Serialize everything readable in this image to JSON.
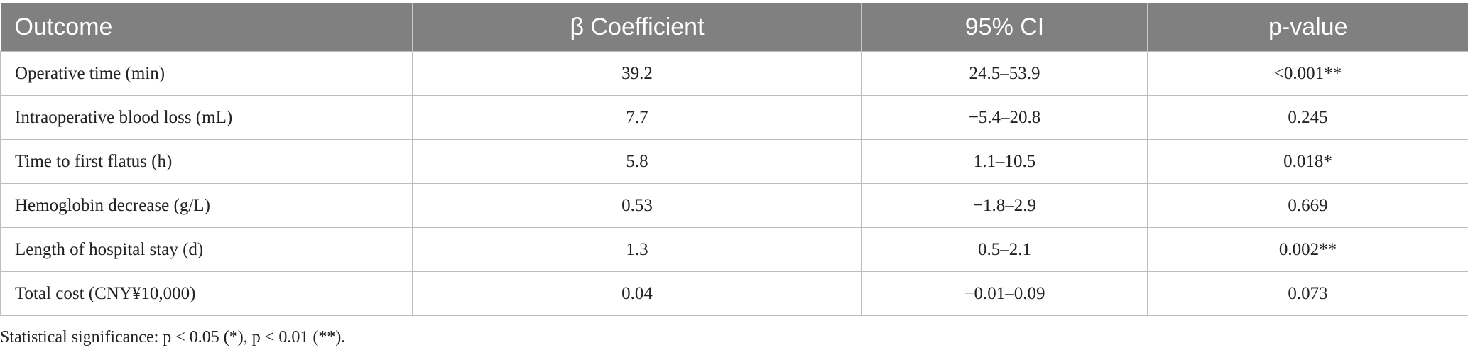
{
  "table": {
    "header": [
      "Outcome",
      "β Coefficient",
      "95% CI",
      "p-value"
    ],
    "rows": [
      [
        "Operative time (min)",
        "39.2",
        "24.5–53.9",
        "<0.001**"
      ],
      [
        "Intraoperative blood loss (mL)",
        "7.7",
        "−5.4–20.8",
        "0.245"
      ],
      [
        "Time to first flatus (h)",
        "5.8",
        "1.1–10.5",
        "0.018*"
      ],
      [
        "Hemoglobin decrease (g/L)",
        "0.53",
        "−1.8–2.9",
        "0.669"
      ],
      [
        "Length of hospital stay (d)",
        "1.3",
        "0.5–2.1",
        "0.002**"
      ],
      [
        "Total cost (CNY¥10,000)",
        "0.04",
        "−0.01–0.09",
        "0.073"
      ]
    ]
  },
  "footnote": "Statistical significance: p < 0.05 (*), p < 0.01 (**)."
}
